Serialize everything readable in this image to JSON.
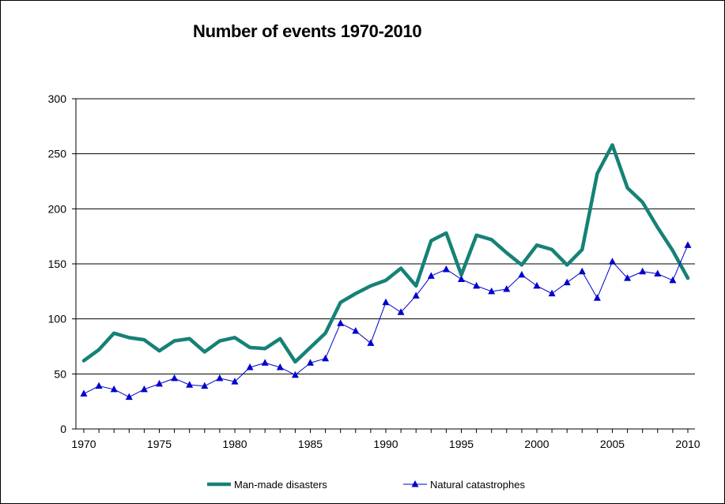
{
  "chart_data": {
    "type": "line",
    "title": "Number of events 1970-2010",
    "xlabel": "",
    "ylabel": "",
    "xlim": [
      1970,
      2010
    ],
    "ylim": [
      0,
      300
    ],
    "yticks": [
      "0",
      "50",
      "100",
      "150",
      "200",
      "250",
      "300"
    ],
    "xticks": [
      "1970",
      "1975",
      "1980",
      "1985",
      "1990",
      "1995",
      "2000",
      "2005",
      "2010"
    ],
    "grid": "horizontal",
    "legend_position": "bottom",
    "x": [
      1970,
      1971,
      1972,
      1973,
      1974,
      1975,
      1976,
      1977,
      1978,
      1979,
      1980,
      1981,
      1982,
      1983,
      1984,
      1985,
      1986,
      1987,
      1988,
      1989,
      1990,
      1991,
      1992,
      1993,
      1994,
      1995,
      1996,
      1997,
      1998,
      1999,
      2000,
      2001,
      2002,
      2003,
      2004,
      2005,
      2006,
      2007,
      2008,
      2009,
      2010
    ],
    "series": [
      {
        "name": "Man-made disasters",
        "color": "#168177",
        "marker": "none",
        "values": [
          62,
          72,
          87,
          83,
          81,
          71,
          80,
          82,
          70,
          80,
          83,
          74,
          73,
          82,
          61,
          74,
          87,
          115,
          123,
          130,
          135,
          146,
          130,
          171,
          178,
          140,
          176,
          172,
          160,
          149,
          167,
          163,
          149,
          163,
          232,
          258,
          219,
          206,
          183,
          162,
          137
        ]
      },
      {
        "name": "Natural catastrophes",
        "color": "#0000cc",
        "marker": "triangle",
        "values": [
          32,
          39,
          36,
          29,
          36,
          41,
          46,
          40,
          39,
          46,
          43,
          56,
          60,
          56,
          49,
          60,
          64,
          96,
          89,
          78,
          115,
          106,
          121,
          139,
          145,
          136,
          130,
          125,
          127,
          140,
          130,
          123,
          133,
          143,
          119,
          152,
          137,
          143,
          141,
          135,
          167
        ]
      }
    ]
  }
}
